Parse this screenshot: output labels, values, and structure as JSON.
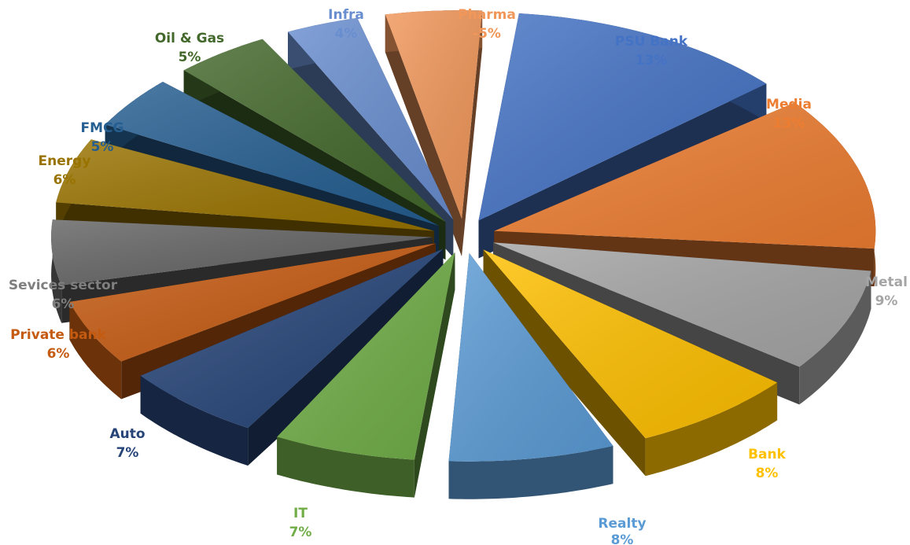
{
  "chart_data": {
    "type": "pie",
    "style": "3d-exploded",
    "title": "",
    "legend": "none",
    "slices": [
      {
        "name": "PSU Bank",
        "value_label": "13%",
        "value": 13,
        "color": "#4472C4"
      },
      {
        "name": "Media",
        "value_label": "13%",
        "value": 13,
        "color": "#ED7D31"
      },
      {
        "name": "Metal",
        "value_label": "9%",
        "value": 9,
        "color": "#A5A5A5"
      },
      {
        "name": "Bank",
        "value_label": "8%",
        "value": 8,
        "color": "#FFC000"
      },
      {
        "name": "Realty",
        "value_label": "8%",
        "value": 8,
        "color": "#5B9BD5"
      },
      {
        "name": "IT",
        "value_label": "7%",
        "value": 7,
        "color": "#70AD47"
      },
      {
        "name": "Auto",
        "value_label": "7%",
        "value": 7,
        "color": "#264478"
      },
      {
        "name": "Private bank",
        "value_label": "6%",
        "value": 6,
        "color": "#C55A11"
      },
      {
        "name": "Sevices sector",
        "value_label": "6%",
        "value": 6,
        "color": "#636363"
      },
      {
        "name": "Energy",
        "value_label": "6%",
        "value": 6,
        "color": "#997300"
      },
      {
        "name": "FMCG",
        "value_label": "5%",
        "value": 5,
        "color": "#255E91"
      },
      {
        "name": "Oil & Gas",
        "value_label": "5%",
        "value": 5,
        "color": "#43682B"
      },
      {
        "name": "Infra",
        "value_label": "4%",
        "value": 4,
        "color": "#698ED0"
      },
      {
        "name": "Pharma",
        "value_label": "-5%",
        "value": 5,
        "color": "#F1975A"
      }
    ]
  }
}
